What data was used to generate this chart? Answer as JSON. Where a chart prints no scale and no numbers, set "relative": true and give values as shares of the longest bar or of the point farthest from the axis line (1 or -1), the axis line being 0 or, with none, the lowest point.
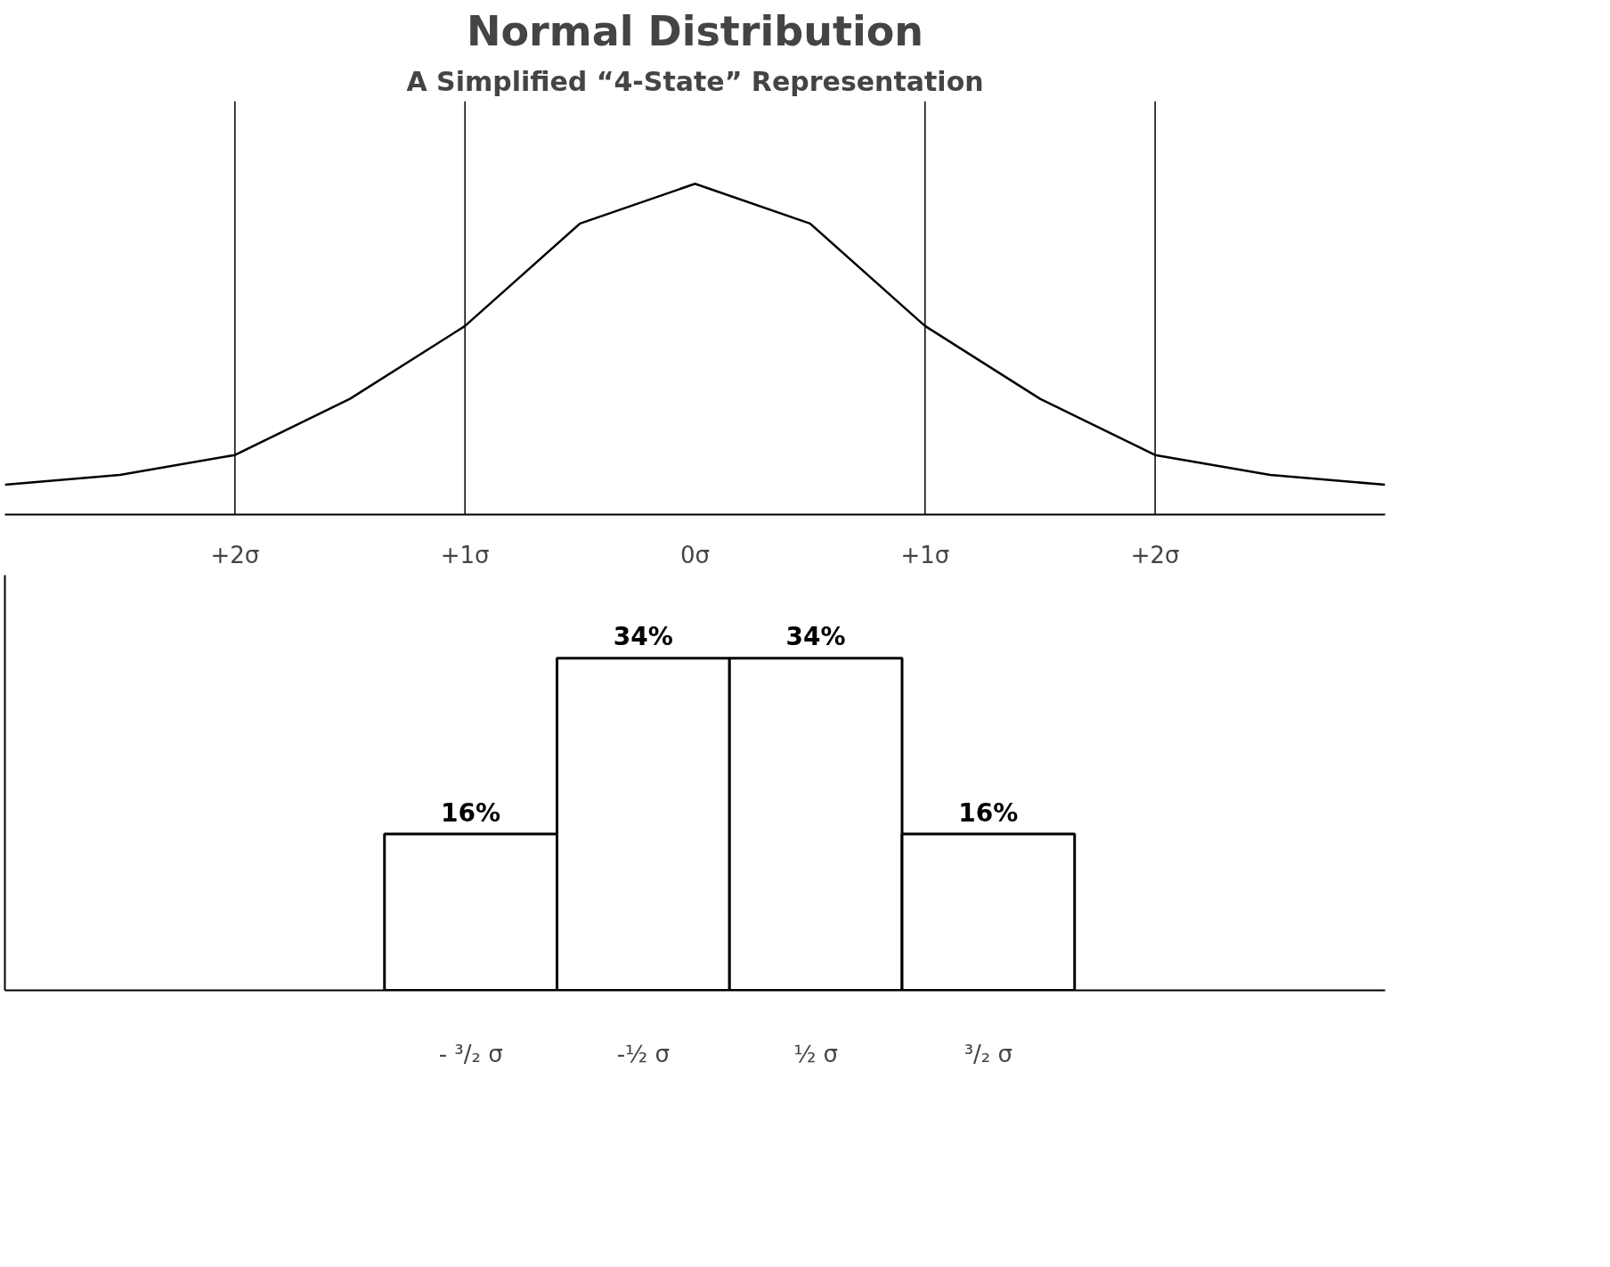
{
  "chart_data": [
    {
      "type": "line",
      "title": "Normal Distribution",
      "subtitle": "A Simplified “4-State” Representation",
      "relative": true,
      "x": [
        -3,
        -2.5,
        -2,
        -1.5,
        -1,
        -0.5,
        0,
        0.5,
        1,
        1.5,
        2,
        2.5,
        3
      ],
      "series": [
        {
          "color": "#000000",
          "values": [
            0.09,
            0.12,
            0.18,
            0.35,
            0.57,
            0.88,
            1,
            0.88,
            0.57,
            0.35,
            0.18,
            0.12,
            0.09
          ]
        }
      ],
      "xlim": [
        -3,
        3
      ],
      "xticks": [
        {
          "value": -2,
          "label": "+2σ"
        },
        {
          "value": -1,
          "label": "+1σ"
        },
        {
          "value": 0,
          "label": "0σ"
        },
        {
          "value": 1,
          "label": "+1σ"
        },
        {
          "value": 2,
          "label": "+2σ"
        }
      ],
      "ref_lines": [
        {
          "axis": "x",
          "value": -2
        },
        {
          "axis": "x",
          "value": -1
        },
        {
          "axis": "x",
          "value": 1
        },
        {
          "axis": "x",
          "value": 2
        }
      ],
      "grid": false,
      "tick_labels": "x",
      "line_style": "solid",
      "marker": "none"
    },
    {
      "type": "bar",
      "categories": [
        "- ³/₂ σ",
        "-½ σ",
        "½ σ",
        "³/₂ σ"
      ],
      "series": [
        {
          "color": "#ffffff",
          "values": [
            16,
            34,
            34,
            16
          ],
          "value_labels": [
            "16%",
            "34%",
            "34%",
            "16%"
          ]
        }
      ],
      "grid": false,
      "tick_labels": "x"
    }
  ]
}
